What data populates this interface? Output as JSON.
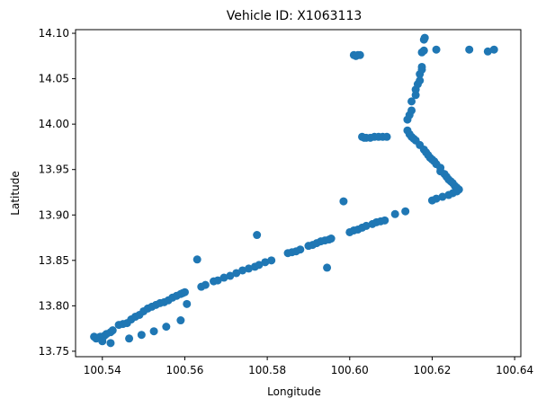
{
  "chart_data": {
    "type": "scatter",
    "title": "Vehicle ID: X1063113",
    "xlabel": "Longitude",
    "ylabel": "Latitude",
    "xlim": [
      100.5335,
      100.6415
    ],
    "ylim": [
      13.744,
      14.104
    ],
    "xticks": [
      100.54,
      100.56,
      100.58,
      100.6,
      100.62,
      100.64
    ],
    "xtick_labels": [
      "100.54",
      "100.56",
      "100.58",
      "100.60",
      "100.62",
      "100.64"
    ],
    "yticks": [
      13.75,
      13.8,
      13.85,
      13.9,
      13.95,
      14.0,
      14.05,
      14.1
    ],
    "ytick_labels": [
      "13.75",
      "13.80",
      "13.85",
      "13.90",
      "13.95",
      "14.00",
      "14.05",
      "14.10"
    ],
    "grid": false,
    "marker_color": "#1f77b4",
    "points": [
      [
        100.538,
        13.766
      ],
      [
        100.5385,
        13.764
      ],
      [
        100.539,
        13.765
      ],
      [
        100.5395,
        13.766
      ],
      [
        100.54,
        13.761
      ],
      [
        100.5405,
        13.767
      ],
      [
        100.541,
        13.769
      ],
      [
        100.542,
        13.771
      ],
      [
        100.5425,
        13.773
      ],
      [
        100.542,
        13.759
      ],
      [
        100.544,
        13.779
      ],
      [
        100.545,
        13.78
      ],
      [
        100.546,
        13.781
      ],
      [
        100.5465,
        13.764
      ],
      [
        100.547,
        13.785
      ],
      [
        100.548,
        13.788
      ],
      [
        100.549,
        13.79
      ],
      [
        100.5495,
        13.768
      ],
      [
        100.55,
        13.794
      ],
      [
        100.551,
        13.797
      ],
      [
        100.552,
        13.799
      ],
      [
        100.5525,
        13.772
      ],
      [
        100.553,
        13.801
      ],
      [
        100.554,
        13.803
      ],
      [
        100.555,
        13.804
      ],
      [
        100.5555,
        13.777
      ],
      [
        100.556,
        13.806
      ],
      [
        100.557,
        13.809
      ],
      [
        100.558,
        13.811
      ],
      [
        100.559,
        13.813
      ],
      [
        100.559,
        13.784
      ],
      [
        100.5595,
        13.814
      ],
      [
        100.56,
        13.815
      ],
      [
        100.5605,
        13.802
      ],
      [
        100.563,
        13.851
      ],
      [
        100.564,
        13.821
      ],
      [
        100.565,
        13.823
      ],
      [
        100.567,
        13.827
      ],
      [
        100.568,
        13.828
      ],
      [
        100.5695,
        13.831
      ],
      [
        100.571,
        13.833
      ],
      [
        100.5725,
        13.836
      ],
      [
        100.574,
        13.839
      ],
      [
        100.5755,
        13.841
      ],
      [
        100.577,
        13.843
      ],
      [
        100.5775,
        13.878
      ],
      [
        100.578,
        13.845
      ],
      [
        100.5795,
        13.848
      ],
      [
        100.581,
        13.85
      ],
      [
        100.585,
        13.858
      ],
      [
        100.586,
        13.859
      ],
      [
        100.587,
        13.86
      ],
      [
        100.588,
        13.862
      ],
      [
        100.59,
        13.866
      ],
      [
        100.591,
        13.867
      ],
      [
        100.592,
        13.869
      ],
      [
        100.593,
        13.871
      ],
      [
        100.594,
        13.872
      ],
      [
        100.5945,
        13.842
      ],
      [
        100.595,
        13.873
      ],
      [
        100.5955,
        13.874
      ],
      [
        100.5985,
        13.915
      ],
      [
        100.6,
        13.881
      ],
      [
        100.601,
        13.883
      ],
      [
        100.602,
        13.884
      ],
      [
        100.603,
        13.886
      ],
      [
        100.604,
        13.888
      ],
      [
        100.6055,
        13.89
      ],
      [
        100.6065,
        13.892
      ],
      [
        100.6075,
        13.893
      ],
      [
        100.6085,
        13.894
      ],
      [
        100.611,
        13.901
      ],
      [
        100.6135,
        13.904
      ],
      [
        100.601,
        14.076
      ],
      [
        100.6015,
        14.075
      ],
      [
        100.602,
        14.076
      ],
      [
        100.6025,
        14.076
      ],
      [
        100.603,
        13.986
      ],
      [
        100.6035,
        13.985
      ],
      [
        100.604,
        13.985
      ],
      [
        100.605,
        13.985
      ],
      [
        100.606,
        13.986
      ],
      [
        100.607,
        13.986
      ],
      [
        100.608,
        13.986
      ],
      [
        100.609,
        13.986
      ],
      [
        100.614,
        13.993
      ],
      [
        100.6145,
        13.989
      ],
      [
        100.615,
        13.986
      ],
      [
        100.6155,
        13.984
      ],
      [
        100.616,
        13.982
      ],
      [
        100.617,
        13.977
      ],
      [
        100.618,
        13.972
      ],
      [
        100.6185,
        13.969
      ],
      [
        100.619,
        13.966
      ],
      [
        100.6195,
        13.963
      ],
      [
        100.62,
        13.961
      ],
      [
        100.6205,
        13.959
      ],
      [
        100.621,
        13.956
      ],
      [
        100.622,
        13.952
      ],
      [
        100.622,
        13.948
      ],
      [
        100.623,
        13.945
      ],
      [
        100.6235,
        13.942
      ],
      [
        100.624,
        13.939
      ],
      [
        100.6245,
        13.937
      ],
      [
        100.625,
        13.935
      ],
      [
        100.6255,
        13.932
      ],
      [
        100.626,
        13.93
      ],
      [
        100.6265,
        13.928
      ],
      [
        100.626,
        13.926
      ],
      [
        100.625,
        13.924
      ],
      [
        100.624,
        13.922
      ],
      [
        100.6225,
        13.92
      ],
      [
        100.621,
        13.918
      ],
      [
        100.62,
        13.916
      ],
      [
        100.614,
        14.005
      ],
      [
        100.6145,
        14.01
      ],
      [
        100.615,
        14.015
      ],
      [
        100.615,
        14.025
      ],
      [
        100.616,
        14.032
      ],
      [
        100.616,
        14.038
      ],
      [
        100.6165,
        14.044
      ],
      [
        100.617,
        14.048
      ],
      [
        100.617,
        14.055
      ],
      [
        100.6175,
        14.06
      ],
      [
        100.6175,
        14.063
      ],
      [
        100.6175,
        14.079
      ],
      [
        100.618,
        14.081
      ],
      [
        100.618,
        14.093
      ],
      [
        100.6182,
        14.095
      ],
      [
        100.621,
        14.082
      ],
      [
        100.629,
        14.082
      ],
      [
        100.6335,
        14.08
      ],
      [
        100.635,
        14.082
      ]
    ]
  }
}
